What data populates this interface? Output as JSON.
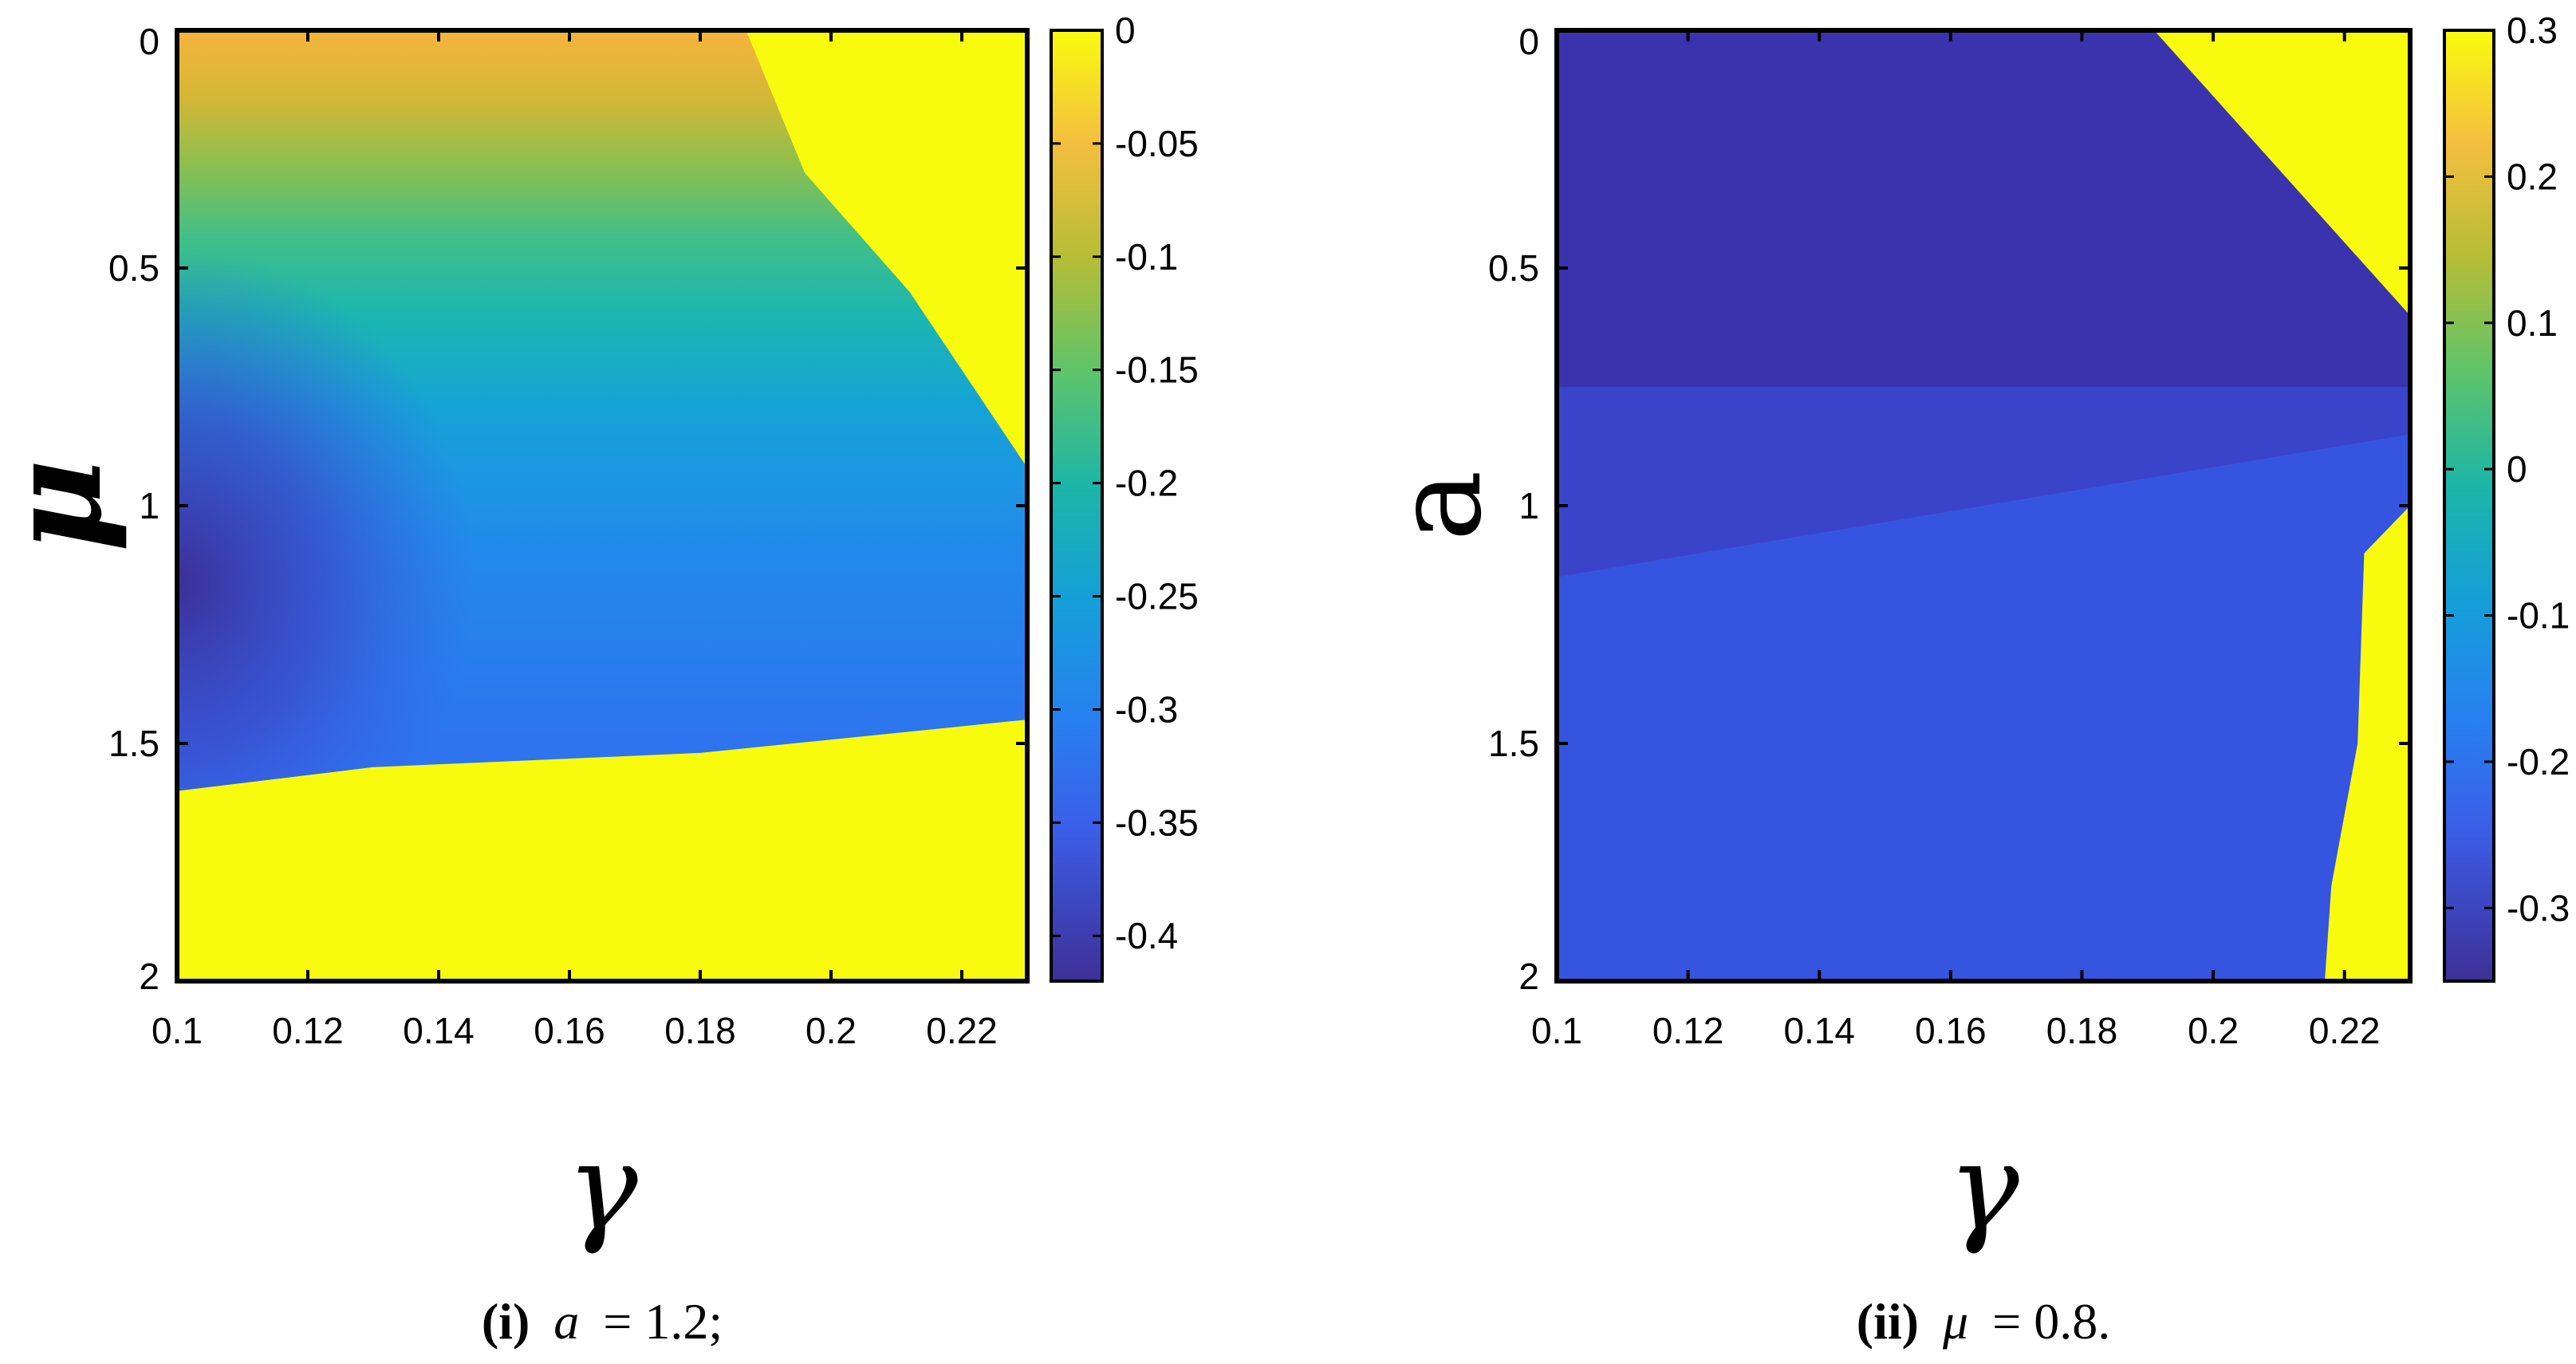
{
  "chart_data": [
    {
      "type": "heatmap",
      "xlabel": "γ",
      "ylabel": "μ",
      "xlim": [
        0.1,
        0.23
      ],
      "ylim": [
        0,
        2
      ],
      "x_ticks": [
        "0.1",
        "0.12",
        "0.14",
        "0.16",
        "0.18",
        "0.2",
        "0.22"
      ],
      "y_ticks": [
        "0",
        "0.5",
        "1",
        "1.5",
        "2"
      ],
      "y_axis_direction": "reversed",
      "colorbar": {
        "range": [
          -0.42,
          0
        ],
        "ticks": [
          "0",
          "-0.05",
          "-0.1",
          "-0.15",
          "-0.2",
          "-0.25",
          "-0.3",
          "-0.35",
          "-0.4"
        ],
        "colormap": "parula"
      },
      "caption": {
        "label": "(i)",
        "variable": "a",
        "equals": "= 1.2;"
      },
      "regions": {
        "yellow_upper_right_boundary": [
          [
            0.187,
            0.0
          ],
          [
            0.196,
            0.3
          ],
          [
            0.212,
            0.55
          ],
          [
            0.23,
            0.92
          ]
        ],
        "yellow_lower_boundary": [
          [
            0.1,
            1.6
          ],
          [
            0.13,
            1.55
          ],
          [
            0.18,
            1.52
          ],
          [
            0.23,
            1.45
          ]
        ],
        "value_profile_vs_mu": [
          [
            0.0,
            -0.06
          ],
          [
            0.25,
            -0.14
          ],
          [
            0.5,
            -0.22
          ],
          [
            0.8,
            -0.28
          ],
          [
            1.1,
            -0.31
          ],
          [
            1.45,
            -0.33
          ]
        ],
        "min_value_location": [
          0.1,
          1.35
        ],
        "min_value": -0.42
      }
    },
    {
      "type": "heatmap",
      "xlabel": "γ",
      "ylabel": "a",
      "xlim": [
        0.1,
        0.23
      ],
      "ylim": [
        0,
        2
      ],
      "x_ticks": [
        "0.1",
        "0.12",
        "0.14",
        "0.16",
        "0.18",
        "0.2",
        "0.22"
      ],
      "y_ticks": [
        "0",
        "0.5",
        "1",
        "1.5",
        "2"
      ],
      "y_axis_direction": "reversed",
      "colorbar": {
        "range": [
          -0.35,
          0.3
        ],
        "ticks": [
          "0.3",
          "0.2",
          "0.1",
          "0",
          "-0.1",
          "-0.2",
          "-0.3"
        ],
        "colormap": "parula"
      },
      "caption": {
        "label": "(ii)",
        "variable": "μ",
        "equals": "= 0.8."
      },
      "regions": {
        "yellow_upper_right_boundary": [
          [
            0.191,
            0.0
          ],
          [
            0.23,
            0.6
          ]
        ],
        "yellow_lower_right_boundary": [
          [
            0.23,
            1.0
          ],
          [
            0.223,
            1.1
          ],
          [
            0.222,
            1.5
          ],
          [
            0.218,
            1.8
          ],
          [
            0.217,
            2.0
          ]
        ],
        "upper_band_value": -0.32,
        "lower_band_value": -0.24,
        "band_split_a": 0.75
      }
    }
  ]
}
